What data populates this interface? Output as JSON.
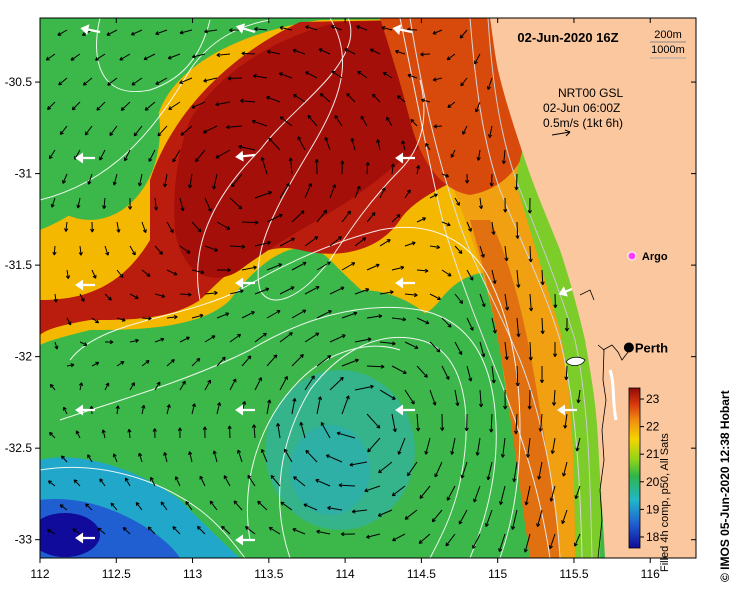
{
  "map": {
    "title": "02-Jun-2020 16Z",
    "depth_legend": {
      "shallow": "200m",
      "deep": "1000m"
    },
    "current_info": {
      "line1": "NRT00 GSL",
      "line2": "02-Jun 06:00Z",
      "line3": "0.5m/s (1kt 6h)"
    },
    "markers": {
      "argo": {
        "label": "Argo",
        "lon": 115.88,
        "lat": -31.45
      },
      "perth": {
        "label": "Perth",
        "lon": 115.86,
        "lat": -31.95
      }
    },
    "x_ticks": [
      "112",
      "112.5",
      "113",
      "113.5",
      "114",
      "114.5",
      "115",
      "115.5",
      "116"
    ],
    "y_ticks": [
      "-30.5",
      "-31",
      "-31.5",
      "-32",
      "-32.5",
      "-33"
    ],
    "extent": {
      "lon": [
        112,
        116.3
      ],
      "lat": [
        -33.1,
        -30.15
      ]
    },
    "colorbar": {
      "ticks": [
        "23",
        "22",
        "21",
        "20",
        "19",
        "18"
      ],
      "label": "Filled 4h comp, p50, All Sats",
      "range": [
        17.6,
        23.4
      ]
    },
    "credit": "© IMOS 05-Jun-2020 12:38 Hobart",
    "colors": {
      "land": "#fbc79e",
      "warm": "#a8120c",
      "mid": "#f5c800",
      "cool": "#3cb84a",
      "cold": "#1f5fd1"
    }
  }
}
